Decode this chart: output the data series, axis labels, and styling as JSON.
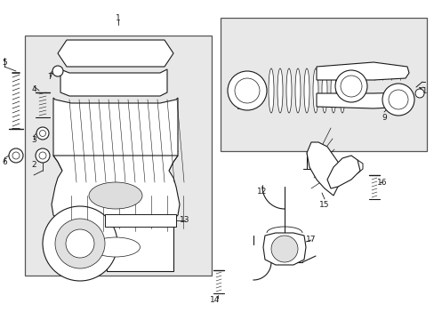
{
  "bg_color": "#ffffff",
  "box_bg": "#e0e0e0",
  "lc": "#1a1a1a",
  "fs": 6.5,
  "fig_w": 4.89,
  "fig_h": 3.6,
  "dpi": 100
}
